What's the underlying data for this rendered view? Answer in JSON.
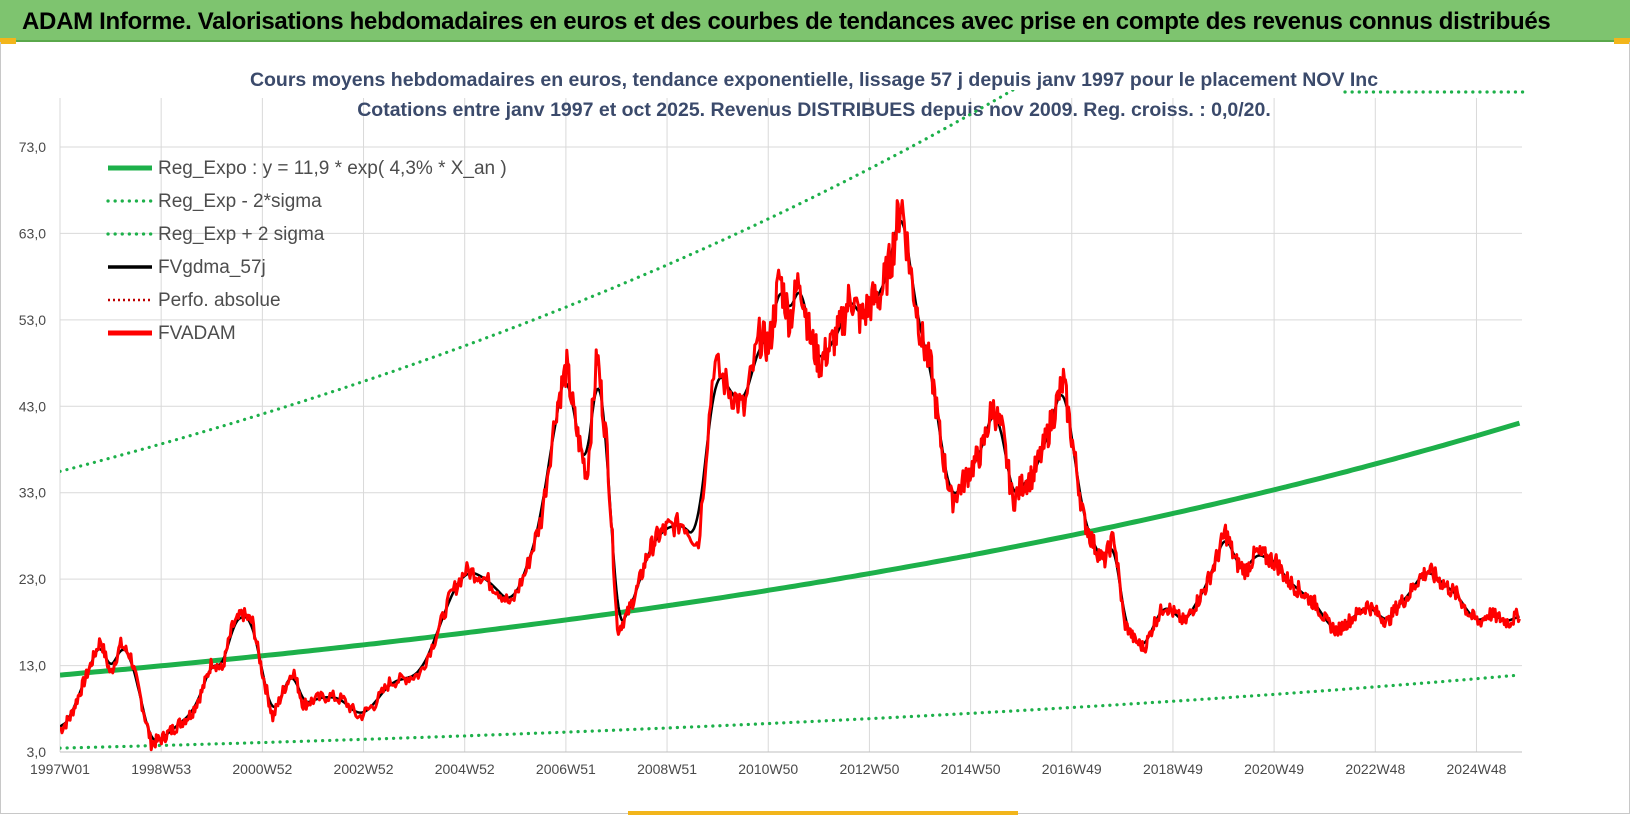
{
  "header": {
    "title": "ADAM Informe. Valorisations hebdomadaires en euros et des courbes de tendances avec prise en compte des revenus connus distribués"
  },
  "colors": {
    "banner": "#7ec46f",
    "accent": "#f2b51b",
    "trend": "#1db04a",
    "price": "#ff0000",
    "smoothed": "#000000",
    "title_text": "#3b4a6b"
  },
  "chart_data": {
    "type": "line",
    "subtitle_line1": "Cours moyens hebdomadaires en euros, tendance exponentielle, lissage 57 j depuis janv 1997 pour le placement NOV Inc",
    "subtitle_line2": "Cotations entre janv 1997 et oct 2025. Revenus DISTRIBUES depuis nov 2009.  Reg. croiss. : 0,0/20.",
    "ylim": [
      3,
      79
    ],
    "y_ticks": [
      "73,0",
      "63,0",
      "53,0",
      "43,0",
      "33,0",
      "23,0",
      "13,0",
      "3,0"
    ],
    "x_ticks": [
      "1997W01",
      "1998W53",
      "2000W52",
      "2002W52",
      "2004W52",
      "2006W51",
      "2008W51",
      "2010W50",
      "2012W50",
      "2014W50",
      "2016W49",
      "2018W49",
      "2020W49",
      "2022W48",
      "2024W48"
    ],
    "grid": true,
    "legend_position": "top-left",
    "legend": [
      {
        "label": "Reg_Expo : y = 11,9 * exp( 4,3% *  X_an )",
        "style": "solid",
        "color": "#1db04a"
      },
      {
        "label": "Reg_Exp - 2*sigma",
        "style": "dotted",
        "color": "#1db04a"
      },
      {
        "label": "Reg_Exp + 2 sigma",
        "style": "dotted",
        "color": "#1db04a"
      },
      {
        "label": "FVgdma_57j",
        "style": "solid",
        "color": "#000000"
      },
      {
        "label": "Perfo. absolue",
        "style": "dotted",
        "color": "#c00000"
      },
      {
        "label": "FVADAM",
        "style": "solid",
        "color": "#ff0000"
      }
    ],
    "regression": {
      "a": 11.9,
      "b": 0.043,
      "lower_factor": 0.29,
      "upper_factor": 2.98
    },
    "series": [
      {
        "name": "FVADAM",
        "x": [
          1997.0,
          1997.2,
          1997.4,
          1997.6,
          1997.8,
          1998.0,
          1998.2,
          1998.4,
          1998.6,
          1998.8,
          1999.0,
          1999.2,
          1999.4,
          1999.6,
          1999.8,
          2000.0,
          2000.2,
          2000.4,
          2000.6,
          2000.8,
          2001.0,
          2001.2,
          2001.4,
          2001.6,
          2001.8,
          2002.0,
          2002.3,
          2002.6,
          2002.9,
          2003.2,
          2003.5,
          2003.8,
          2004.1,
          2004.4,
          2004.7,
          2005.0,
          2005.3,
          2005.6,
          2005.9,
          2006.2,
          2006.5,
          2006.8,
          2007.0,
          2007.2,
          2007.4,
          2007.6,
          2007.8,
          2008.0,
          2008.2,
          2008.4,
          2008.6,
          2008.8,
          2009.0,
          2009.3,
          2009.6,
          2009.9,
          2010.2,
          2010.5,
          2010.8,
          2011.0,
          2011.2,
          2011.4,
          2011.6,
          2011.8,
          2012.0,
          2012.2,
          2012.4,
          2012.6,
          2012.8,
          2013.0,
          2013.2,
          2013.4,
          2013.6,
          2013.8,
          2014.0,
          2014.2,
          2014.4,
          2014.6,
          2014.8,
          2015.0,
          2015.2,
          2015.4,
          2015.6,
          2015.8,
          2016.0,
          2016.2,
          2016.4,
          2016.6,
          2016.8,
          2017.0,
          2017.2,
          2017.4,
          2017.6,
          2017.8,
          2018.0,
          2018.2,
          2018.4,
          2018.6,
          2018.8,
          2019.0,
          2019.2,
          2019.4,
          2019.6,
          2019.8,
          2020.0,
          2020.2,
          2020.4,
          2020.6,
          2020.8,
          2021.0,
          2021.2,
          2021.4,
          2021.6,
          2021.8,
          2022.0,
          2022.2,
          2022.4,
          2022.6,
          2022.8,
          2023.0,
          2023.2,
          2023.4,
          2023.6,
          2023.8,
          2024.0,
          2024.2,
          2024.4,
          2024.6,
          2024.8,
          2025.0,
          2025.2,
          2025.4,
          2025.6,
          2025.8
        ],
        "values": [
          5.5,
          7.0,
          10.0,
          13.0,
          16.0,
          12.0,
          15.5,
          14.0,
          9.0,
          4.0,
          4.5,
          5.5,
          6.5,
          7.5,
          10.0,
          13.5,
          12.5,
          17.5,
          19.0,
          18.0,
          12.0,
          7.0,
          10.0,
          12.5,
          8.5,
          9.0,
          9.5,
          9.0,
          7.0,
          8.5,
          11.0,
          11.5,
          12.0,
          16.0,
          21.0,
          24.0,
          23.5,
          22.0,
          20.0,
          24.0,
          30.0,
          43.0,
          47.5,
          40.0,
          35.0,
          49.0,
          38.0,
          17.0,
          19.0,
          22.0,
          26.0,
          28.0,
          29.0,
          29.5,
          27.0,
          48.0,
          45.0,
          42.5,
          51.0,
          50.0,
          58.0,
          53.0,
          58.0,
          51.0,
          48.0,
          50.0,
          52.0,
          56.0,
          53.0,
          55.0,
          56.0,
          60.0,
          67.0,
          58.0,
          51.0,
          47.0,
          38.0,
          32.0,
          34.0,
          36.0,
          38.0,
          43.0,
          40.0,
          32.0,
          34.0,
          35.0,
          38.0,
          42.0,
          46.0,
          38.0,
          30.0,
          27.0,
          25.0,
          28.0,
          18.0,
          16.0,
          15.0,
          18.0,
          20.0,
          19.0,
          18.0,
          20.0,
          22.0,
          25.0,
          28.5,
          25.0,
          24.0,
          26.0,
          25.5,
          25.0,
          23.0,
          22.0,
          21.0,
          20.0,
          18.0,
          17.0,
          18.0,
          19.0,
          20.0,
          19.0,
          18.0,
          20.0,
          21.0,
          23.0,
          24.0,
          23.0,
          22.0,
          21.0,
          19.0,
          18.0,
          19.0,
          18.5,
          18.0,
          19.0
        ]
      }
    ]
  }
}
